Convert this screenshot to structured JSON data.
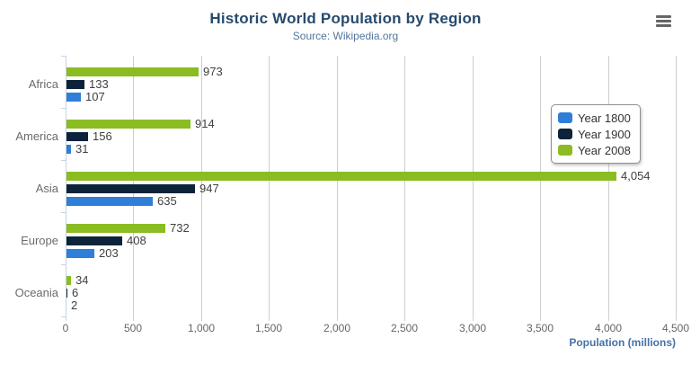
{
  "header": {
    "title": "Historic World Population by Region",
    "subtitle": "Source: Wikipedia.org"
  },
  "toolbar": {
    "menu_icon": "hamburger-menu-icon"
  },
  "chart_data": {
    "type": "bar",
    "orientation": "horizontal",
    "title": "Historic World Population by Region",
    "subtitle": "Source: Wikipedia.org",
    "categories": [
      "Africa",
      "America",
      "Asia",
      "Europe",
      "Oceania"
    ],
    "series": [
      {
        "name": "Year 1800",
        "color": "#2f7ed8",
        "values": [
          107,
          31,
          635,
          203,
          2
        ]
      },
      {
        "name": "Year 1900",
        "color": "#0d233a",
        "values": [
          133,
          156,
          947,
          408,
          6
        ]
      },
      {
        "name": "Year 2008",
        "color": "#8bbc21",
        "values": [
          973,
          914,
          4054,
          732,
          34
        ]
      }
    ],
    "series_draw_order_top_to_bottom": [
      "Year 2008",
      "Year 1900",
      "Year 1800"
    ],
    "xlabel": "Population (millions)",
    "ylabel": "",
    "xlim": [
      0,
      4500
    ],
    "xticks": [
      0,
      500,
      1000,
      1500,
      2000,
      2500,
      3000,
      3500,
      4000,
      4500
    ],
    "grid": true,
    "gridline_color": "#cdcdcd",
    "axis_line_color": "#c8d4e3",
    "legend_position": "right",
    "legend_entries": [
      "Year 1800",
      "Year 1900",
      "Year 2008"
    ],
    "data_labels_shown": true
  },
  "colors": {
    "title": "#274b6d",
    "subtitle": "#55759e",
    "axis_title": "#4572a7",
    "tick_label": "#666666",
    "category_label": "#6b6b6b",
    "value_label": "#404040",
    "menu_icon": "#666666"
  }
}
